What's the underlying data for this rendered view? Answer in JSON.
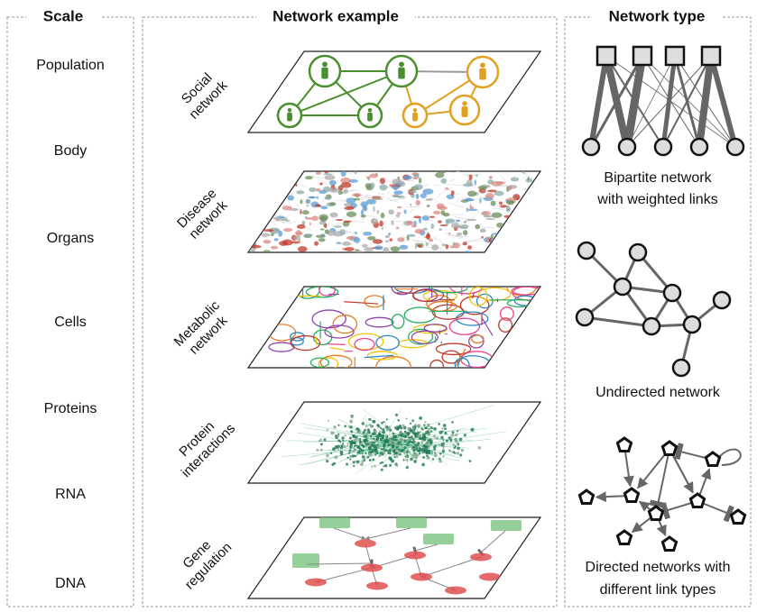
{
  "panels": [
    {
      "title": "Scale"
    },
    {
      "title": "Network example"
    },
    {
      "title": "Network type"
    }
  ],
  "scales": [
    "Population",
    "Body",
    "Organs",
    "Cells",
    "Proteins",
    "RNA",
    "DNA"
  ],
  "examples": [
    {
      "label": [
        "Social",
        "network"
      ]
    },
    {
      "label": [
        "Disease",
        "network"
      ]
    },
    {
      "label": [
        "Metabolic",
        "network"
      ]
    },
    {
      "label": [
        "Protein",
        "interactions"
      ]
    },
    {
      "label": [
        "Gene",
        "regulation"
      ]
    }
  ],
  "types": [
    {
      "caption": [
        "Bipartite network",
        "with weighted links"
      ]
    },
    {
      "caption": [
        "Undirected network"
      ]
    },
    {
      "caption": [
        "Directed networks with",
        "different link types"
      ]
    }
  ]
}
